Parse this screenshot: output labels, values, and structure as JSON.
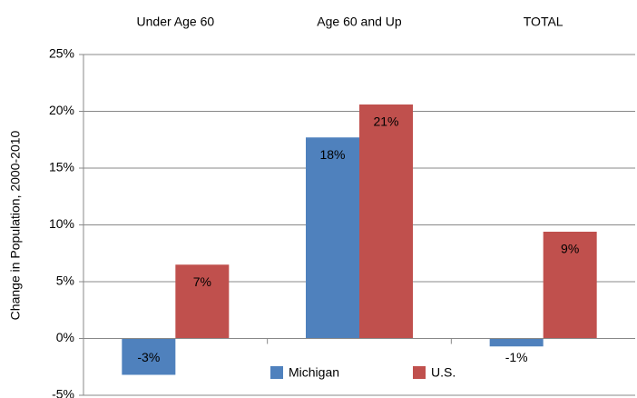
{
  "chart_data": {
    "type": "bar",
    "y_label": "Change in Population, 2000-2010",
    "categories": [
      "Under Age 60",
      "Age 60 and Up",
      "TOTAL"
    ],
    "series": [
      {
        "name": "Michigan",
        "color": "#4f81bd",
        "values": [
          -3.2,
          17.7,
          -0.7
        ],
        "value_labels": [
          "-3%",
          "18%",
          "-1%"
        ]
      },
      {
        "name": "U.S.",
        "color": "#c0504d",
        "values": [
          6.5,
          20.6,
          9.4
        ],
        "value_labels": [
          "7%",
          "21%",
          "9%"
        ]
      }
    ],
    "ylim": [
      -5,
      25
    ],
    "yticks": [
      {
        "value": -5,
        "label": "-5%"
      },
      {
        "value": 0,
        "label": "0%"
      },
      {
        "value": 5,
        "label": "5%"
      },
      {
        "value": 10,
        "label": "10%"
      },
      {
        "value": 15,
        "label": "15%"
      },
      {
        "value": 20,
        "label": "20%"
      },
      {
        "value": 25,
        "label": "25%"
      }
    ],
    "grid": true,
    "legend": "bottom"
  }
}
